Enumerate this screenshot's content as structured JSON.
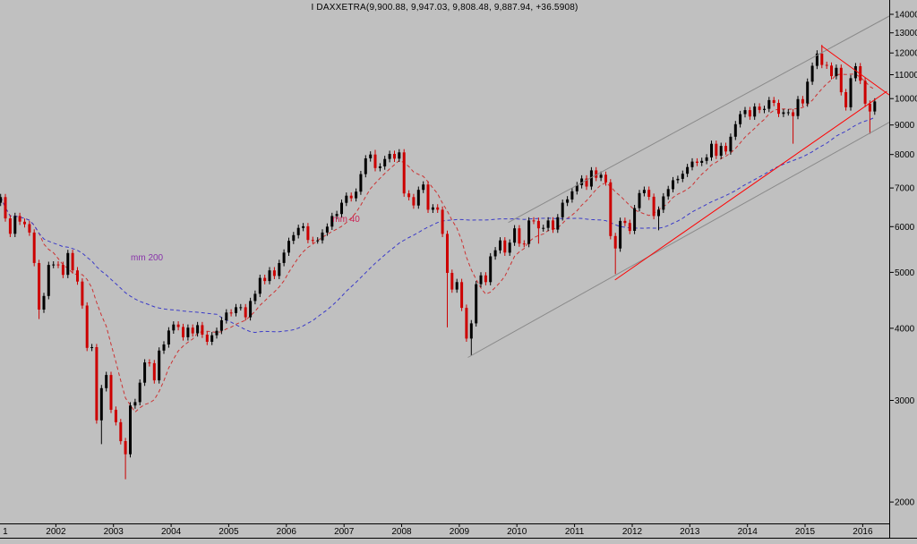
{
  "title": "I DAXXETRA(9,900.88, 9,947.03, 9,808.48, 9,887.94, +36.5908)",
  "colors": {
    "background": "#c0c0c0",
    "axis": "#000000",
    "up": "#000000",
    "down": "#cc0000",
    "ma40": "#cc3333",
    "ma200": "#3a3ac8",
    "channel_gray": "#8a8a8a",
    "trend_red": "#ff0000"
  },
  "chart_data": {
    "type": "candlestick",
    "symbol": "DAX XETRA",
    "quote": {
      "open": "9,900.88",
      "high": "9,947.03",
      "low": "9,808.48",
      "close": "9,887.94",
      "change": "+36.5908"
    },
    "x_start": "2001-01",
    "frequency": "monthly",
    "first_open": 6600,
    "monthly_closes": [
      6750,
      6200,
      5830,
      6260,
      6120,
      6060,
      5860,
      5190,
      4310,
      4550,
      5150,
      5160,
      5150,
      4950,
      5400,
      5040,
      4820,
      4380,
      3700,
      3710,
      2770,
      3150,
      3320,
      2890,
      2750,
      2550,
      2420,
      2940,
      2980,
      3220,
      3490,
      3480,
      3250,
      3660,
      3750,
      3965,
      4060,
      4020,
      3860,
      4010,
      3920,
      4050,
      3900,
      3790,
      3890,
      3960,
      4130,
      4260,
      4250,
      4350,
      4350,
      4180,
      4460,
      4590,
      4890,
      4830,
      5040,
      4930,
      5190,
      5410,
      5670,
      5800,
      5970,
      6010,
      5690,
      5680,
      5680,
      5860,
      6000,
      6260,
      6310,
      6600,
      6790,
      6720,
      6900,
      7400,
      7880,
      8000,
      7580,
      7630,
      7860,
      8020,
      7870,
      8070,
      6850,
      6750,
      6530,
      6950,
      7100,
      6420,
      6480,
      6420,
      5830,
      4990,
      4670,
      4810,
      4340,
      3840,
      4080,
      4770,
      4940,
      4810,
      5330,
      5460,
      5680,
      5410,
      5630,
      5960,
      5610,
      5600,
      6150,
      6140,
      5960,
      5970,
      6150,
      5930,
      6230,
      6600,
      6690,
      6910,
      7080,
      7270,
      7040,
      7510,
      7290,
      7380,
      7160,
      5780,
      5500,
      6140,
      6090,
      5900,
      6460,
      6860,
      6950,
      6760,
      6260,
      6420,
      6770,
      6970,
      7220,
      7260,
      7410,
      7610,
      7780,
      7740,
      7800,
      7910,
      8350,
      7960,
      8280,
      8100,
      8590,
      9030,
      9400,
      9550,
      9310,
      9690,
      9560,
      9600,
      9940,
      9830,
      9410,
      9470,
      9470,
      9330,
      9980,
      9810,
      10700,
      11400,
      11970,
      11440,
      11410,
      10940,
      11310,
      10260,
      9660,
      10850,
      11380,
      10740,
      9800,
      9500,
      9887.94
    ],
    "wick_extremes": [
      {
        "i": 8,
        "low": 4150
      },
      {
        "i": 21,
        "low": 2519
      },
      {
        "i": 26,
        "low": 2190
      },
      {
        "i": 78,
        "high": 8150
      },
      {
        "i": 93,
        "low": 4014
      },
      {
        "i": 98,
        "low": 3589
      },
      {
        "i": 112,
        "low": 5608
      },
      {
        "i": 128,
        "low": 4966
      },
      {
        "i": 137,
        "low": 5914
      },
      {
        "i": 165,
        "low": 8355
      },
      {
        "i": 171,
        "high": 12390
      },
      {
        "i": 181,
        "low": 8690
      }
    ],
    "up_color": "#000000",
    "down_color": "#cc0000",
    "moving_averages": [
      {
        "name": "mm 40",
        "window": 9,
        "color": "#cc3333",
        "label": "mm 40",
        "label_color": "#cc2255",
        "label_pos": [
          2006.8,
          6110
        ]
      },
      {
        "name": "mm 200",
        "window": 46,
        "color": "#3a3ac8",
        "label": "mm 200",
        "label_color": "#8833aa",
        "label_pos": [
          2003.3,
          5245
        ]
      }
    ],
    "trend_lines": [
      {
        "name": "channel-upper-line",
        "x1": 2009.85,
        "v1": 6100,
        "x2": 2016.46,
        "v2": 13900,
        "color": "#8a8a8a",
        "width": 1
      },
      {
        "name": "channel-lower-line",
        "x1": 2009.15,
        "v1": 3560,
        "x2": 2016.46,
        "v2": 9100,
        "color": "#8a8a8a",
        "width": 1
      },
      {
        "name": "red-support-line",
        "x1": 2011.7,
        "v1": 4850,
        "x2": 2016.42,
        "v2": 10300,
        "color": "#ff0000",
        "width": 1
      },
      {
        "name": "red-resistance-line",
        "x1": 2015.28,
        "v1": 12350,
        "x2": 2016.46,
        "v2": 10150,
        "color": "#ff0000",
        "width": 1
      }
    ],
    "y_axis": {
      "scale": "log",
      "ticks": [
        14000,
        13000,
        12000,
        11000,
        10000,
        9000,
        8000,
        7000,
        6000,
        5000,
        4000,
        3000,
        2000
      ]
    },
    "x_axis": {
      "labels": [
        {
          "text": "1",
          "year": 2001.08
        },
        {
          "text": "2002",
          "year": 2002
        },
        {
          "text": "2003",
          "year": 2003
        },
        {
          "text": "2004",
          "year": 2004
        },
        {
          "text": "2005",
          "year": 2005
        },
        {
          "text": "2006",
          "year": 2006
        },
        {
          "text": "2007",
          "year": 2007
        },
        {
          "text": "2008",
          "year": 2008
        },
        {
          "text": "2009",
          "year": 2009
        },
        {
          "text": "2010",
          "year": 2010
        },
        {
          "text": "2011",
          "year": 2011
        },
        {
          "text": "2012",
          "year": 2012
        },
        {
          "text": "2013",
          "year": 2013
        },
        {
          "text": "2014",
          "year": 2014
        },
        {
          "text": "2015",
          "year": 2015
        },
        {
          "text": "2016",
          "year": 2016
        }
      ]
    },
    "xlim": [
      2001.0,
      2016.46
    ],
    "ylim": [
      1840,
      14800
    ]
  }
}
